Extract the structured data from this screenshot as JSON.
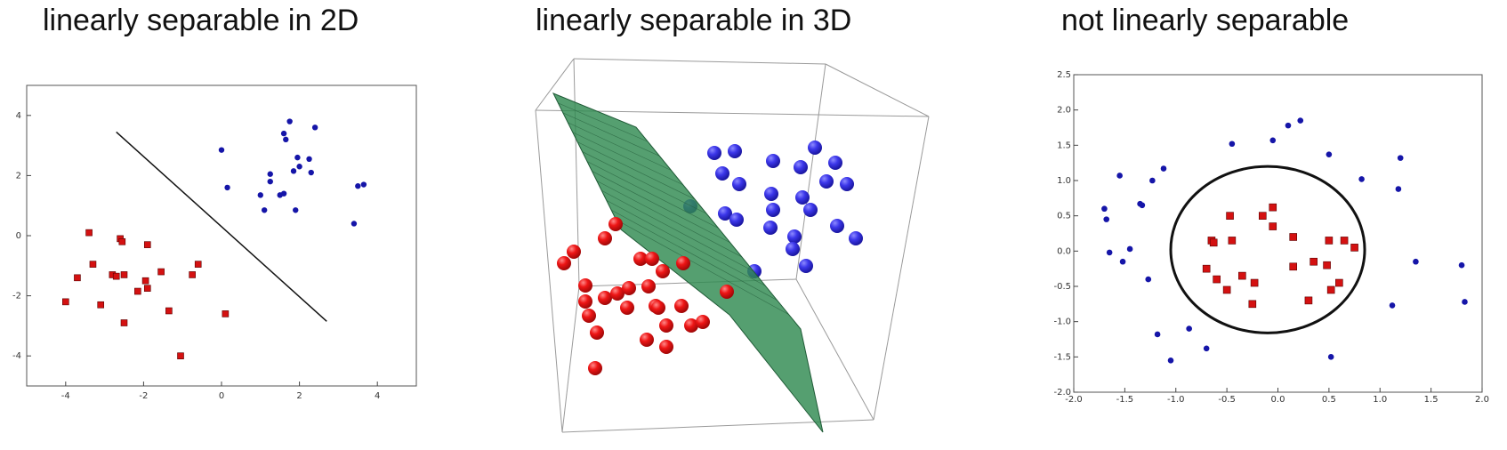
{
  "panels": [
    {
      "title": "linearly separable in 2D"
    },
    {
      "title": "linearly separable in 3D"
    },
    {
      "title": "not linearly separable"
    }
  ],
  "chart_data": [
    {
      "type": "scatter",
      "title": "linearly separable in 2D",
      "xlim": [
        -5,
        5
      ],
      "ylim": [
        -5,
        5
      ],
      "xticks": [
        -4,
        -2,
        0,
        2,
        4
      ],
      "yticks": [
        4,
        2,
        0,
        -2,
        -4
      ],
      "grid": false,
      "colors": {
        "red": "#d41111",
        "blue": "#1515a8",
        "line": "#111111"
      },
      "series": [
        {
          "marker": "square",
          "color": "red",
          "points": [
            [
              -4.0,
              -2.2
            ],
            [
              -3.7,
              -1.4
            ],
            [
              -3.4,
              0.1
            ],
            [
              -3.3,
              -0.95
            ],
            [
              -3.1,
              -2.3
            ],
            [
              -2.8,
              -1.3
            ],
            [
              -2.6,
              -0.1
            ],
            [
              -2.55,
              -0.2
            ],
            [
              -2.5,
              -1.3
            ],
            [
              -2.5,
              -2.9
            ],
            [
              -2.15,
              -1.85
            ],
            [
              -1.95,
              -1.5
            ],
            [
              -1.9,
              -0.3
            ],
            [
              -1.9,
              -1.75
            ],
            [
              -1.55,
              -1.2
            ],
            [
              -1.35,
              -2.5
            ],
            [
              -1.05,
              -4.0
            ],
            [
              -0.75,
              -1.3
            ],
            [
              -0.6,
              -0.95
            ],
            [
              0.1,
              -2.6
            ],
            [
              -2.7,
              -1.35
            ]
          ]
        },
        {
          "marker": "circle",
          "color": "blue",
          "points": [
            [
              0.0,
              2.85
            ],
            [
              0.15,
              1.6
            ],
            [
              1.0,
              1.35
            ],
            [
              1.1,
              0.85
            ],
            [
              1.25,
              1.8
            ],
            [
              1.25,
              2.05
            ],
            [
              1.5,
              1.35
            ],
            [
              1.6,
              1.4
            ],
            [
              1.6,
              3.4
            ],
            [
              1.65,
              3.2
            ],
            [
              1.75,
              3.8
            ],
            [
              1.85,
              2.15
            ],
            [
              1.9,
              0.85
            ],
            [
              1.95,
              2.6
            ],
            [
              2.0,
              2.3
            ],
            [
              2.25,
              2.55
            ],
            [
              2.3,
              2.1
            ],
            [
              2.4,
              3.6
            ],
            [
              3.4,
              0.4
            ],
            [
              3.5,
              1.65
            ],
            [
              3.65,
              1.7
            ]
          ]
        }
      ],
      "line": [
        [
          -2.7,
          3.45
        ],
        [
          2.7,
          -2.85
        ]
      ]
    },
    {
      "type": "scatter3d",
      "title": "linearly separable in 3D",
      "grid": false,
      "colors": {
        "red": "#ee1515",
        "blue": "#3a34e8",
        "plane": "#2f8a50"
      },
      "series": [
        {
          "marker": "sphere",
          "color": "blue",
          "count": 30
        },
        {
          "marker": "sphere",
          "color": "red",
          "count": 30
        }
      ],
      "separator": "plane"
    },
    {
      "type": "scatter",
      "title": "not linearly separable",
      "xlim": [
        -2.0,
        2.0
      ],
      "ylim": [
        -2.0,
        2.5
      ],
      "xticks": [
        "-2.0",
        "-1.5",
        "-1.0",
        "-0.5",
        "0.0",
        "0.5",
        "1.0",
        "1.5",
        "2.0"
      ],
      "yticks": [
        "2.5",
        "2.0",
        "1.5",
        "1.0",
        "0.5",
        "0.0",
        "-0.5",
        "-1.0",
        "-1.5",
        "-2.0"
      ],
      "grid": false,
      "colors": {
        "red": "#d41111",
        "blue": "#1515a8",
        "circle": "#111111"
      },
      "series": [
        {
          "marker": "square",
          "color": "red",
          "points": [
            [
              -0.7,
              -0.25
            ],
            [
              -0.65,
              0.15
            ],
            [
              -0.63,
              0.12
            ],
            [
              -0.6,
              -0.4
            ],
            [
              -0.5,
              -0.55
            ],
            [
              -0.47,
              0.5
            ],
            [
              -0.45,
              0.15
            ],
            [
              -0.35,
              -0.35
            ],
            [
              -0.25,
              -0.75
            ],
            [
              -0.23,
              -0.45
            ],
            [
              -0.15,
              0.5
            ],
            [
              -0.05,
              0.35
            ],
            [
              -0.05,
              0.62
            ],
            [
              0.15,
              0.2
            ],
            [
              0.15,
              -0.22
            ],
            [
              0.3,
              -0.7
            ],
            [
              0.35,
              -0.15
            ],
            [
              0.48,
              -0.2
            ],
            [
              0.5,
              0.15
            ],
            [
              0.52,
              -0.55
            ],
            [
              0.6,
              -0.45
            ],
            [
              0.65,
              0.15
            ],
            [
              0.75,
              0.05
            ]
          ]
        },
        {
          "marker": "circle",
          "color": "blue",
          "points": [
            [
              -1.7,
              0.6
            ],
            [
              -1.68,
              0.45
            ],
            [
              -1.65,
              -0.02
            ],
            [
              -1.55,
              1.07
            ],
            [
              -1.52,
              -0.15
            ],
            [
              -1.45,
              0.03
            ],
            [
              -1.35,
              0.67
            ],
            [
              -1.33,
              0.65
            ],
            [
              -1.27,
              -0.4
            ],
            [
              -1.23,
              1.0
            ],
            [
              -1.18,
              -1.18
            ],
            [
              -1.12,
              1.17
            ],
            [
              -1.05,
              -1.55
            ],
            [
              -0.87,
              -1.1
            ],
            [
              -0.7,
              -1.38
            ],
            [
              -0.45,
              1.52
            ],
            [
              -0.05,
              1.57
            ],
            [
              0.1,
              1.78
            ],
            [
              0.22,
              1.85
            ],
            [
              0.5,
              1.37
            ],
            [
              0.52,
              -1.5
            ],
            [
              0.82,
              1.02
            ],
            [
              1.12,
              -0.77
            ],
            [
              1.18,
              0.88
            ],
            [
              1.2,
              1.32
            ],
            [
              1.35,
              -0.15
            ],
            [
              1.8,
              -0.2
            ],
            [
              1.83,
              -0.72
            ]
          ]
        }
      ],
      "ellipse": {
        "cx": -0.1,
        "cy": 0.02,
        "rx": 0.95,
        "ry": 1.18
      }
    }
  ]
}
